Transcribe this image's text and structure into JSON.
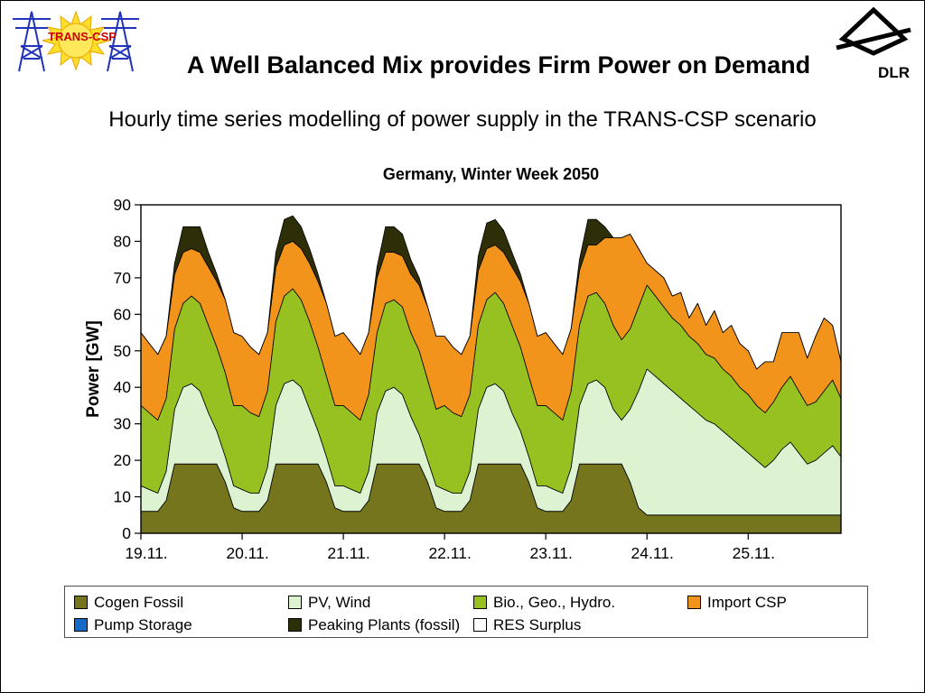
{
  "slide": {
    "title": "A Well Balanced Mix provides Firm Power on Demand",
    "subtitle": "Hourly time series modelling of power supply in the TRANS-CSP scenario"
  },
  "logos": {
    "trans_csp": "TRANS-CSP",
    "dlr": "DLR"
  },
  "chart_data": {
    "type": "area",
    "stacked": true,
    "title": "Germany, Winter Week 2050",
    "ylabel": "Power  [GW]",
    "ylim": [
      0,
      90
    ],
    "yticks": [
      0,
      10,
      20,
      30,
      40,
      50,
      60,
      70,
      80,
      90
    ],
    "x_tick_labels": [
      "19.11.",
      "20.11.",
      "21.11.",
      "22.11.",
      "23.11.",
      "24.11.",
      "25.11."
    ],
    "x_hours_step": 2,
    "grid": false,
    "legend_position": "bottom",
    "series": [
      {
        "name": "Cogen Fossil",
        "color": "#75751E",
        "values": [
          6,
          6,
          6,
          9,
          19,
          19,
          19,
          19,
          19,
          19,
          14,
          7,
          6,
          6,
          6,
          9,
          19,
          19,
          19,
          19,
          19,
          19,
          14,
          7,
          6,
          6,
          6,
          9,
          19,
          19,
          19,
          19,
          19,
          19,
          14,
          7,
          6,
          6,
          6,
          9,
          19,
          19,
          19,
          19,
          19,
          19,
          14,
          7,
          6,
          6,
          6,
          9,
          19,
          19,
          19,
          19,
          19,
          19,
          14,
          7,
          5,
          5,
          5,
          5,
          5,
          5,
          5,
          5,
          5,
          5,
          5,
          5,
          5,
          5,
          5,
          5,
          5,
          5,
          5,
          5,
          5,
          5,
          5,
          5
        ]
      },
      {
        "name": "Pump Storage",
        "color": "#1569C7",
        "values": [
          0,
          0,
          0,
          0,
          0,
          0,
          0,
          0,
          0,
          0,
          0,
          0,
          0,
          0,
          0,
          0,
          0,
          0,
          0,
          0,
          0,
          0,
          0,
          0,
          0,
          0,
          0,
          0,
          0,
          0,
          0,
          0,
          0,
          0,
          0,
          0,
          0,
          0,
          0,
          0,
          0,
          0,
          0,
          0,
          0,
          0,
          0,
          0,
          0,
          0,
          0,
          0,
          0,
          0,
          0,
          0,
          0,
          0,
          0,
          0,
          0,
          0,
          0,
          0,
          0,
          0,
          0,
          0,
          0,
          0,
          0,
          0,
          0,
          0,
          0,
          0,
          0,
          0,
          0,
          0,
          0,
          0,
          0,
          0
        ]
      },
      {
        "name": "PV, Wind",
        "color": "#DDF2D1",
        "values": [
          7,
          6,
          5,
          8,
          15,
          21,
          22,
          20,
          14,
          9,
          7,
          6,
          6,
          5,
          5,
          9,
          16,
          22,
          23,
          21,
          15,
          9,
          7,
          6,
          7,
          6,
          5,
          8,
          14,
          20,
          21,
          19,
          13,
          8,
          6,
          6,
          6,
          5,
          5,
          8,
          15,
          21,
          22,
          20,
          14,
          9,
          7,
          6,
          7,
          6,
          5,
          9,
          16,
          22,
          23,
          21,
          15,
          12,
          20,
          32,
          40,
          38,
          36,
          34,
          32,
          30,
          28,
          26,
          25,
          23,
          21,
          19,
          17,
          15,
          13,
          15,
          18,
          20,
          17,
          14,
          15,
          17,
          19,
          16
        ]
      },
      {
        "name": "Bio., Geo., Hydro.",
        "color": "#96C121",
        "values": [
          22,
          21,
          20,
          20,
          22,
          23,
          24,
          24,
          24,
          23,
          23,
          22,
          23,
          22,
          21,
          21,
          23,
          24,
          25,
          24,
          24,
          23,
          22,
          22,
          22,
          21,
          20,
          21,
          22,
          24,
          24,
          24,
          23,
          23,
          22,
          21,
          23,
          22,
          21,
          21,
          23,
          24,
          25,
          24,
          24,
          23,
          22,
          22,
          22,
          21,
          20,
          21,
          22,
          24,
          24,
          23,
          23,
          22,
          22,
          23,
          23,
          22,
          21,
          20,
          20,
          19,
          19,
          18,
          18,
          17,
          17,
          16,
          16,
          15,
          15,
          16,
          17,
          18,
          17,
          16,
          16,
          17,
          18,
          16
        ]
      },
      {
        "name": "Import CSP",
        "color": "#F2941C",
        "values": [
          20,
          19,
          18,
          17,
          15,
          14,
          13,
          14,
          16,
          18,
          20,
          20,
          19,
          18,
          17,
          16,
          15,
          14,
          13,
          14,
          16,
          18,
          20,
          19,
          20,
          19,
          18,
          17,
          15,
          14,
          13,
          14,
          16,
          18,
          20,
          20,
          19,
          18,
          17,
          16,
          15,
          14,
          13,
          14,
          16,
          18,
          20,
          19,
          20,
          19,
          18,
          17,
          15,
          14,
          13,
          18,
          24,
          28,
          26,
          16,
          6,
          7,
          8,
          6,
          9,
          5,
          11,
          8,
          13,
          10,
          14,
          12,
          12,
          10,
          14,
          11,
          15,
          12,
          16,
          13,
          18,
          20,
          15,
          10
        ]
      },
      {
        "name": "Peaking Plants (fossil)",
        "color": "#2E2E08",
        "values": [
          0,
          0,
          0,
          0,
          3,
          7,
          6,
          7,
          4,
          2,
          0,
          0,
          0,
          0,
          0,
          0,
          4,
          7,
          7,
          6,
          4,
          2,
          0,
          0,
          0,
          0,
          0,
          0,
          3,
          7,
          7,
          6,
          4,
          2,
          0,
          0,
          0,
          0,
          0,
          0,
          4,
          7,
          7,
          6,
          4,
          2,
          0,
          0,
          0,
          0,
          0,
          0,
          3,
          7,
          7,
          3,
          0,
          0,
          0,
          0,
          0,
          0,
          0,
          0,
          0,
          0,
          0,
          0,
          0,
          0,
          0,
          0,
          0,
          0,
          0,
          0,
          0,
          0,
          0,
          0,
          0,
          0,
          0,
          0
        ]
      },
      {
        "name": "RES Surplus",
        "color": "#FFFFFF",
        "values": [
          0,
          0,
          0,
          0,
          0,
          0,
          0,
          0,
          0,
          0,
          0,
          0,
          0,
          0,
          0,
          0,
          0,
          0,
          0,
          0,
          0,
          0,
          0,
          0,
          0,
          0,
          0,
          0,
          0,
          0,
          0,
          0,
          0,
          0,
          0,
          0,
          0,
          0,
          0,
          0,
          0,
          0,
          0,
          0,
          0,
          0,
          0,
          0,
          0,
          0,
          0,
          0,
          0,
          0,
          0,
          0,
          0,
          0,
          0,
          0,
          0,
          0,
          0,
          0,
          0,
          0,
          0,
          0,
          0,
          0,
          0,
          0,
          0,
          0,
          0,
          0,
          0,
          0,
          0,
          0,
          0,
          0,
          0,
          0
        ]
      }
    ],
    "legend": [
      {
        "label": "Cogen Fossil",
        "color": "#75751E"
      },
      {
        "label": "PV, Wind",
        "color": "#DDF2D1"
      },
      {
        "label": "Bio., Geo., Hydro.",
        "color": "#96C121"
      },
      {
        "label": "Import CSP",
        "color": "#F2941C"
      },
      {
        "label": "Pump Storage",
        "color": "#1569C7"
      },
      {
        "label": "Peaking Plants (fossil)",
        "color": "#2E2E08"
      },
      {
        "label": "RES Surplus",
        "color": "#FFFFFF"
      }
    ]
  }
}
